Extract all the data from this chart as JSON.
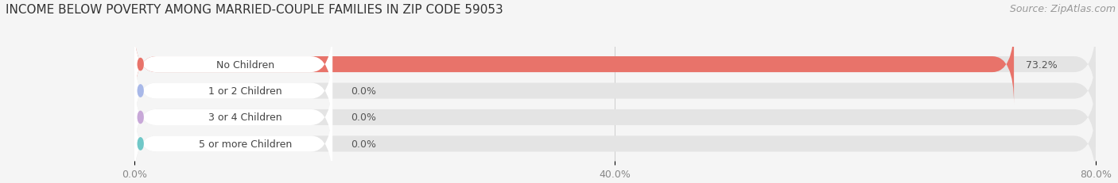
{
  "title": "INCOME BELOW POVERTY AMONG MARRIED-COUPLE FAMILIES IN ZIP CODE 59053",
  "source": "Source: ZipAtlas.com",
  "categories": [
    "No Children",
    "1 or 2 Children",
    "3 or 4 Children",
    "5 or more Children"
  ],
  "values": [
    73.2,
    0.0,
    0.0,
    0.0
  ],
  "bar_colors": [
    "#e8736a",
    "#a8b8e8",
    "#c8a8d8",
    "#70c8c8"
  ],
  "xlim": [
    0,
    80.0
  ],
  "xticks": [
    0.0,
    40.0,
    80.0
  ],
  "xticklabels": [
    "0.0%",
    "40.0%",
    "80.0%"
  ],
  "background_color": "#f5f5f5",
  "bar_bg_color": "#e4e4e4",
  "title_fontsize": 11,
  "source_fontsize": 9,
  "label_fontsize": 9,
  "value_fontsize": 9,
  "fig_width": 14.06,
  "fig_height": 2.32
}
